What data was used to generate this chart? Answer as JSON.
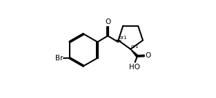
{
  "bg_color": "#ffffff",
  "line_color": "#000000",
  "line_width": 1.5,
  "fig_width": 3.13,
  "fig_height": 1.43,
  "dpi": 100,
  "br_label": "Br",
  "ho_label": "HO",
  "o_label1": "O",
  "o_label2": "O",
  "or1_label": "or1",
  "font_size_atoms": 7.5,
  "font_size_or": 5.0
}
